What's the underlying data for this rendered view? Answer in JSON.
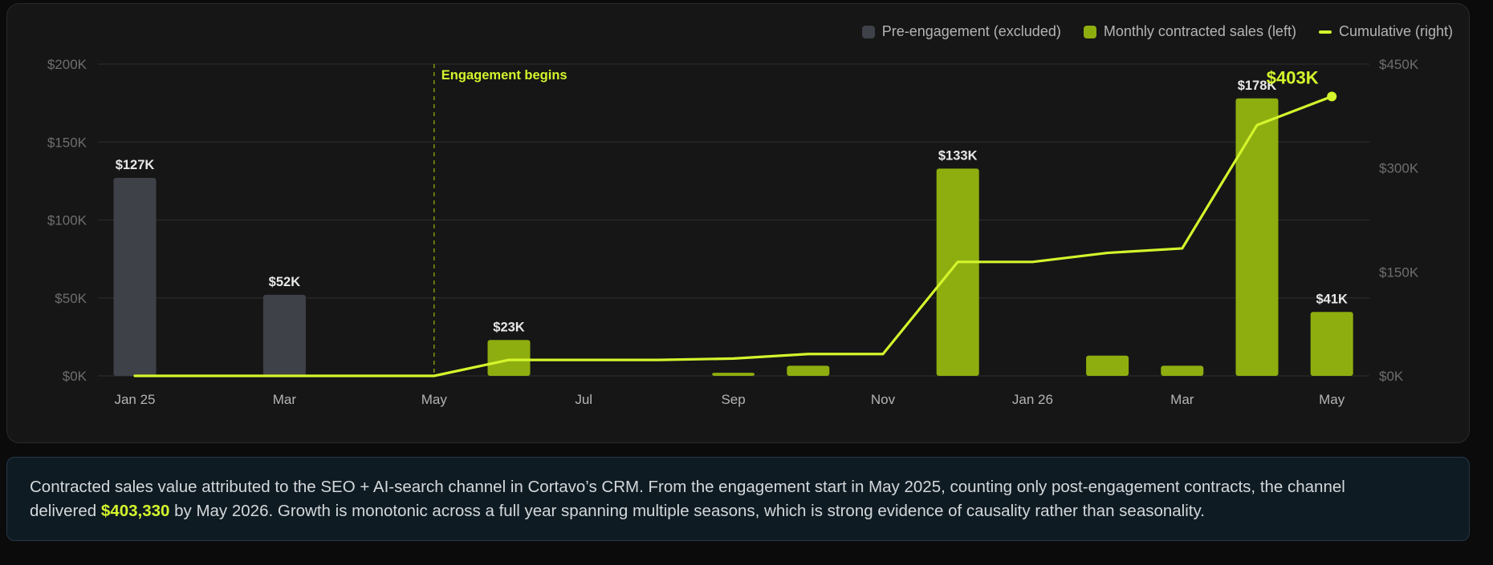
{
  "legend": {
    "pre": "Pre-engagement (excluded)",
    "monthly": "Monthly contracted sales (left)",
    "cumulative": "Cumulative (right)"
  },
  "colors": {
    "pre_bar": "#3e4148",
    "bar": "#8eae0f",
    "line": "#d4f52c",
    "grid": "#2b2b2b",
    "axis_text": "#6e6e6e",
    "tick_text": "#b4b4b4",
    "label_text": "#e8e8e8"
  },
  "annotation": {
    "label": "Engagement begins",
    "month_index": 4
  },
  "chart_data": {
    "type": "bar",
    "left_axis": {
      "ylim": [
        0,
        200000
      ],
      "ticks": [
        0,
        50000,
        100000,
        150000,
        200000
      ],
      "tick_labels": [
        "$0K",
        "$50K",
        "$100K",
        "$150K",
        "$200K"
      ]
    },
    "right_axis": {
      "ylim": [
        0,
        450000
      ],
      "ticks": [
        0,
        150000,
        300000,
        450000
      ],
      "tick_labels": [
        "$0K",
        "$150K",
        "$300K",
        "$450K"
      ]
    },
    "x_tick_labels": [
      {
        "index": 0,
        "label": "Jan 25"
      },
      {
        "index": 2,
        "label": "Mar"
      },
      {
        "index": 4,
        "label": "May"
      },
      {
        "index": 6,
        "label": "Jul"
      },
      {
        "index": 8,
        "label": "Sep"
      },
      {
        "index": 10,
        "label": "Nov"
      },
      {
        "index": 12,
        "label": "Jan 26"
      },
      {
        "index": 14,
        "label": "Mar"
      },
      {
        "index": 16,
        "label": "May"
      }
    ],
    "months": 17,
    "series": [
      {
        "name": "Pre-engagement (excluded)",
        "values": [
          127000,
          0,
          52000,
          0,
          0,
          0,
          0,
          0,
          0,
          0,
          0,
          0,
          0,
          0,
          0,
          0,
          0
        ],
        "labels": [
          "$127K",
          "",
          "$52K",
          "",
          "",
          "",
          "",
          "",
          "",
          "",
          "",
          "",
          "",
          "",
          "",
          "",
          ""
        ]
      },
      {
        "name": "Monthly contracted sales (left)",
        "values": [
          0,
          0,
          0,
          0,
          0,
          23000,
          0,
          0,
          2000,
          6500,
          0,
          133000,
          0,
          13000,
          6500,
          178000,
          41000
        ],
        "labels": [
          "",
          "",
          "",
          "",
          "",
          "$23K",
          "",
          "",
          "",
          "",
          "",
          "$133K",
          "",
          "",
          "",
          "$178K",
          "$41K"
        ]
      },
      {
        "name": "Cumulative (right)",
        "values": [
          0,
          0,
          0,
          0,
          0,
          23000,
          23000,
          23000,
          25000,
          31500,
          31500,
          164500,
          164500,
          177500,
          184000,
          362000,
          403330
        ]
      }
    ],
    "end_label": "$403K"
  },
  "note": {
    "line1": "Contracted sales value attributed to the SEO + AI-search channel in Cortavo’s CRM. From the engagement start in May 2025, counting only post-engagement contracts, the channel",
    "line2_pre": "delivered ",
    "line2_highlight": "$403,330",
    "line2_post": " by May 2026. Growth is monotonic across a full year spanning multiple seasons, which is strong evidence of causality rather than seasonality."
  }
}
